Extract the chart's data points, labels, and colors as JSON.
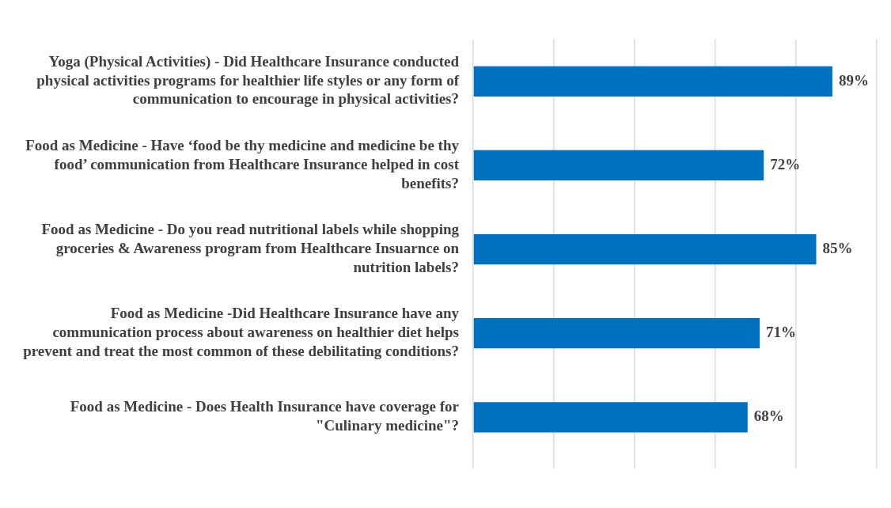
{
  "chart_data": {
    "type": "bar",
    "orientation": "horizontal",
    "categories": [
      "Yoga (Physical Activities) - Did Healthcare Insurance conducted physical activities programs for healthier life styles or any form of communication to encourage in physical activities?",
      "Food as Medicine - Have ‘food be thy medicine and medicine be thy food’ communication from Healthcare Insurance helped in cost benefits?",
      "Food as Medicine - Do you read nutritional labels while shopping groceries & Awareness program from Healthcare Insuarnce on nutrition labels?",
      "Food as Medicine -Did Healthcare Insurance have any communication process about awareness on healthier diet helps prevent and treat the most common of these debilitating conditions?",
      "Food as Medicine - Does Health Insurance have coverage for \"Culinary medicine\"?"
    ],
    "values": [
      89,
      72,
      85,
      71,
      68
    ],
    "value_labels": [
      "89%",
      "72%",
      "85%",
      "71%",
      "68%"
    ],
    "color": "#0070c0",
    "xlim": [
      0,
      100
    ],
    "xticks": [
      {
        "value": 0,
        "label": null
      },
      {
        "value": 20,
        "label": null
      },
      {
        "value": 40,
        "label": null
      },
      {
        "value": 60,
        "label": null
      },
      {
        "value": 80,
        "label": null
      },
      {
        "value": 100,
        "label": null
      }
    ],
    "grid": "x",
    "legend": false
  }
}
